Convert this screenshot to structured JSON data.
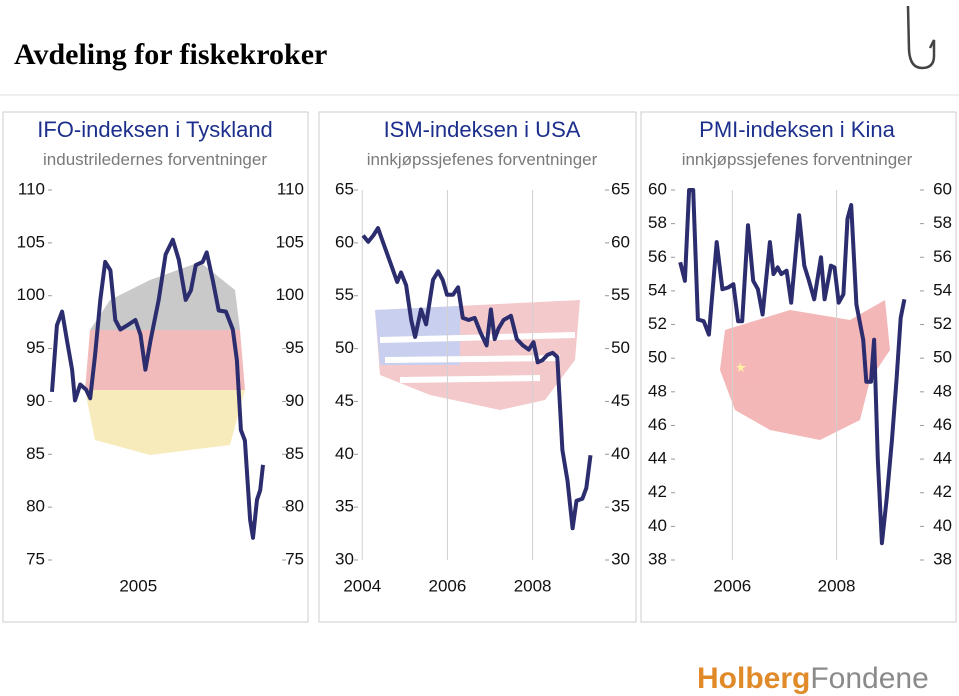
{
  "title": "Avdeling for fiskekroker",
  "logo": {
    "parts": [
      "Holberg",
      "Fondene"
    ]
  },
  "chart_data": [
    {
      "type": "line",
      "title": "IFO-indeksen i Tyskland",
      "subtitle": "industriledernes forventninger",
      "color": "#2b2d6e",
      "xlim": [
        2002,
        2010
      ],
      "xticks": [
        2005
      ],
      "xgrid": false,
      "ylim": [
        75,
        110
      ],
      "yticks": [
        75,
        80,
        85,
        90,
        95,
        100,
        105,
        110
      ],
      "x": [
        2002.0,
        2002.17,
        2002.35,
        2002.52,
        2002.7,
        2002.8,
        2002.98,
        2003.19,
        2003.33,
        2003.5,
        2003.68,
        2003.85,
        2004.03,
        2004.2,
        2004.38,
        2004.62,
        2004.9,
        2005.08,
        2005.25,
        2005.43,
        2005.71,
        2005.95,
        2006.2,
        2006.41,
        2006.65,
        2006.83,
        2007.0,
        2007.24,
        2007.38,
        2007.59,
        2007.8,
        2008.05,
        2008.29,
        2008.43,
        2008.57,
        2008.71,
        2008.89,
        2008.99,
        2009.13,
        2009.24,
        2009.34
      ],
      "values": [
        90.9,
        97.2,
        98.5,
        95.8,
        93,
        90.1,
        91.6,
        91.1,
        90.3,
        94.4,
        99.6,
        103.2,
        102.4,
        97.7,
        96.8,
        97.2,
        97.7,
        96.3,
        93,
        95.8,
        99.6,
        103.9,
        105.3,
        103.4,
        99.6,
        100.5,
        102.9,
        103.2,
        104.1,
        101.5,
        98.6,
        98.5,
        96.8,
        93.9,
        87.3,
        86.3,
        78.8,
        77.1,
        80.7,
        81.6,
        84
      ]
    },
    {
      "type": "line",
      "title": "ISM-indeksen i USA",
      "subtitle": "innkjøpssjefenes forventninger",
      "color": "#2b2d6e",
      "xlim": [
        2003.9,
        2009.7
      ],
      "xticks": [
        2004,
        2006,
        2008
      ],
      "xgrid": true,
      "ylim": [
        30,
        65
      ],
      "yticks": [
        30,
        35,
        40,
        45,
        50,
        55,
        60,
        65
      ],
      "x": [
        2004.02,
        2004.14,
        2004.26,
        2004.37,
        2004.51,
        2004.68,
        2004.82,
        2004.91,
        2005.03,
        2005.15,
        2005.24,
        2005.38,
        2005.5,
        2005.66,
        2005.78,
        2005.89,
        2005.99,
        2006.13,
        2006.25,
        2006.36,
        2006.5,
        2006.64,
        2006.78,
        2006.92,
        2007.02,
        2007.11,
        2007.2,
        2007.32,
        2007.49,
        2007.63,
        2007.77,
        2007.91,
        2008.02,
        2008.12,
        2008.23,
        2008.35,
        2008.47,
        2008.58,
        2008.7,
        2008.82,
        2008.94,
        2009.03,
        2009.17,
        2009.26,
        2009.36
      ],
      "values": [
        60.7,
        60.1,
        60.7,
        61.4,
        59.8,
        57.9,
        56.3,
        57.2,
        56,
        52.7,
        51.1,
        53.7,
        52.3,
        56.5,
        57.3,
        56.5,
        55.1,
        55.1,
        55.8,
        52.9,
        52.7,
        52.9,
        51.5,
        50.3,
        53.7,
        50.9,
        51.9,
        52.7,
        53.1,
        50.9,
        50.3,
        49.9,
        50.6,
        48.7,
        48.9,
        49.4,
        49.6,
        49.2,
        40.4,
        37.5,
        33,
        35.6,
        35.8,
        36.8,
        39.9
      ]
    },
    {
      "type": "line",
      "title": "PMI-indeksen i Kina",
      "subtitle": "innkjøpssjefenes forventninger",
      "color": "#2b2d6e",
      "xlim": [
        2004.9,
        2009.6
      ],
      "xticks": [
        2006,
        2008
      ],
      "xgrid": true,
      "ylim": [
        38,
        60
      ],
      "yticks": [
        38,
        40,
        42,
        44,
        46,
        48,
        50,
        52,
        54,
        56,
        58,
        60
      ],
      "x": [
        2005.0,
        2005.09,
        2005.17,
        2005.25,
        2005.34,
        2005.45,
        2005.55,
        2005.7,
        2005.81,
        2005.92,
        2006.02,
        2006.11,
        2006.19,
        2006.3,
        2006.4,
        2006.49,
        2006.58,
        2006.72,
        2006.79,
        2006.87,
        2006.94,
        2007.04,
        2007.13,
        2007.28,
        2007.38,
        2007.47,
        2007.57,
        2007.7,
        2007.77,
        2007.89,
        2007.96,
        2008.04,
        2008.13,
        2008.21,
        2008.28,
        2008.38,
        2008.51,
        2008.57,
        2008.66,
        2008.72,
        2008.79,
        2008.87,
        2008.96,
        2009.06,
        2009.15,
        2009.23,
        2009.3
      ],
      "values": [
        55.7,
        54.6,
        60,
        60,
        52.3,
        52.2,
        51.4,
        56.9,
        54.1,
        54.2,
        54.4,
        52.2,
        52.2,
        57.9,
        54.6,
        54.1,
        52.6,
        56.9,
        55,
        55.4,
        55,
        55.2,
        53.3,
        58.5,
        55.5,
        54.6,
        53.5,
        56,
        53.5,
        55.5,
        55.4,
        53.3,
        53.8,
        58.3,
        59.1,
        53.2,
        51.1,
        48.6,
        48.6,
        51.1,
        44,
        39,
        41.6,
        45.1,
        48.7,
        52.4,
        53.5
      ]
    }
  ]
}
